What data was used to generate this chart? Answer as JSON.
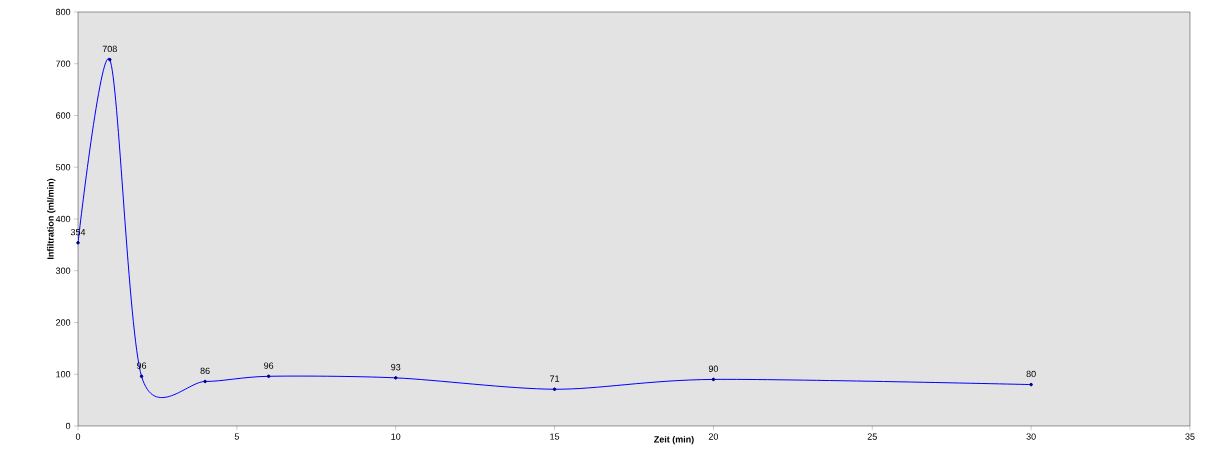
{
  "chart_data": {
    "type": "line",
    "xlabel": "Zeit (min)",
    "ylabel": "Infiltration (ml/min)",
    "x": [
      0,
      1,
      2,
      4,
      6,
      10,
      15,
      20,
      30
    ],
    "series": [
      {
        "color": "#0000ff",
        "values": [
          354,
          708,
          96,
          86,
          96,
          93,
          71,
          90,
          80
        ]
      }
    ],
    "xlim": [
      0,
      35
    ],
    "xticks": [
      0,
      5,
      10,
      15,
      20,
      25,
      30,
      35
    ],
    "ylim": [
      0,
      800
    ],
    "yticks": [
      0,
      100,
      200,
      300,
      400,
      500,
      600,
      700,
      800
    ],
    "grid": false,
    "legend": false,
    "marker": "circle",
    "line_style": "solid",
    "data_labels": true
  }
}
